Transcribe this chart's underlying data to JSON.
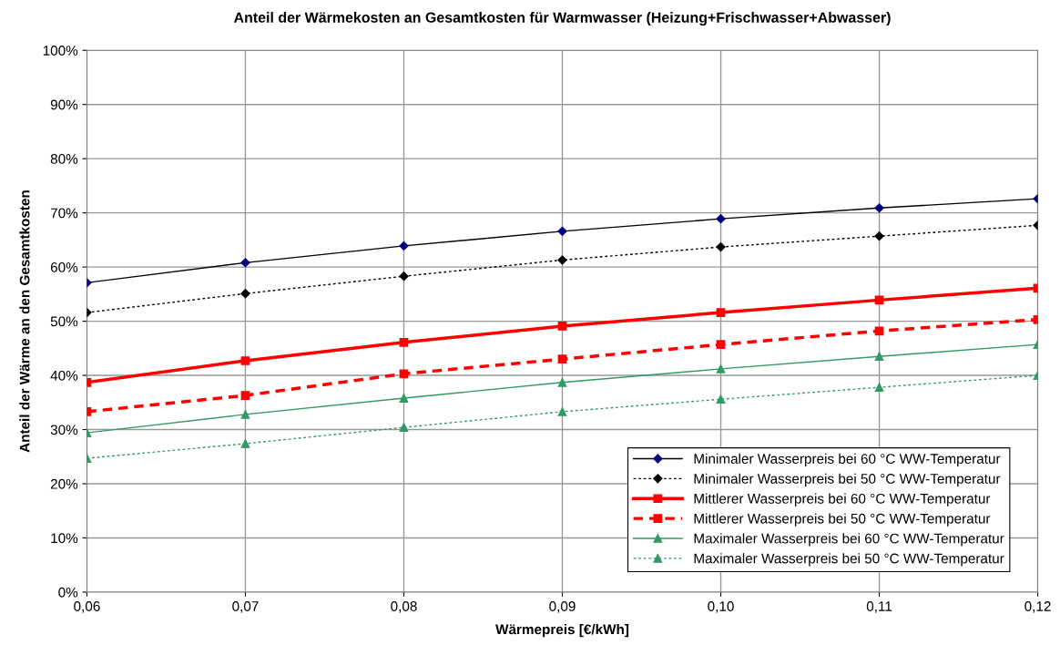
{
  "chart_data": {
    "type": "line",
    "title": "Anteil der Wärmekosten an Gesamtkosten für Warmwasser (Heizung+Frischwasser+Abwasser)",
    "xlabel": "Wärmepreis [€/kWh]",
    "ylabel": "Anteil der Wärme an den Gesamtkosten",
    "x": [
      0.06,
      0.07,
      0.08,
      0.09,
      0.1,
      0.11,
      0.12
    ],
    "xlim": [
      0.06,
      0.12
    ],
    "xticks": [
      {
        "value": 0.06,
        "label": "0,06"
      },
      {
        "value": 0.07,
        "label": "0,07"
      },
      {
        "value": 0.08,
        "label": "0,08"
      },
      {
        "value": 0.09,
        "label": "0,09"
      },
      {
        "value": 0.1,
        "label": "0,10"
      },
      {
        "value": 0.11,
        "label": "0,11"
      },
      {
        "value": 0.12,
        "label": "0,12"
      }
    ],
    "ylim": [
      0,
      100
    ],
    "yticks": [
      {
        "value": 0,
        "label": "0%"
      },
      {
        "value": 10,
        "label": "10%"
      },
      {
        "value": 20,
        "label": "20%"
      },
      {
        "value": 30,
        "label": "30%"
      },
      {
        "value": 40,
        "label": "40%"
      },
      {
        "value": 50,
        "label": "50%"
      },
      {
        "value": 60,
        "label": "60%"
      },
      {
        "value": 70,
        "label": "70%"
      },
      {
        "value": 80,
        "label": "80%"
      },
      {
        "value": 90,
        "label": "90%"
      },
      {
        "value": 100,
        "label": "100%"
      }
    ],
    "grid": true,
    "legend": "bottom right",
    "series": [
      {
        "name": "Minimaler Wasserpreis bei 60 °C WW-Temperatur",
        "color": "#000000",
        "marker": "diamond",
        "line_style": "solid",
        "values": [
          57.1,
          60.8,
          63.9,
          66.6,
          68.9,
          70.9,
          72.6
        ]
      },
      {
        "name": "Minimaler Wasserpreis bei 50 °C WW-Temperatur",
        "color": "#000000",
        "marker": "diamond",
        "line_style": "dotted",
        "values": [
          51.6,
          55.1,
          58.3,
          61.3,
          63.7,
          65.7,
          67.7
        ]
      },
      {
        "name": "Mittlerer Wasserpreis bei 60 °C WW-Temperatur",
        "color": "#ff0000",
        "marker": "square",
        "line_style": "solid",
        "values": [
          38.7,
          42.7,
          46.1,
          49.1,
          51.6,
          53.9,
          56.1
        ]
      },
      {
        "name": "Mittlerer Wasserpreis bei 50 °C WW-Temperatur",
        "color": "#ff0000",
        "marker": "square",
        "line_style": "dashed",
        "values": [
          33.3,
          36.3,
          40.3,
          43.0,
          45.7,
          48.2,
          50.3
        ]
      },
      {
        "name": "Maximaler Wasserpreis bei 60 °C WW-Temperatur",
        "color": "#339966",
        "marker": "triangle",
        "line_style": "solid",
        "values": [
          29.4,
          32.8,
          35.8,
          38.7,
          41.2,
          43.5,
          45.7
        ]
      },
      {
        "name": "Maximaler Wasserpreis bei 50 °C WW-Temperatur",
        "color": "#339966",
        "marker": "triangle",
        "line_style": "dotted",
        "values": [
          24.7,
          27.4,
          30.4,
          33.3,
          35.6,
          37.8,
          40.0
        ]
      }
    ]
  }
}
